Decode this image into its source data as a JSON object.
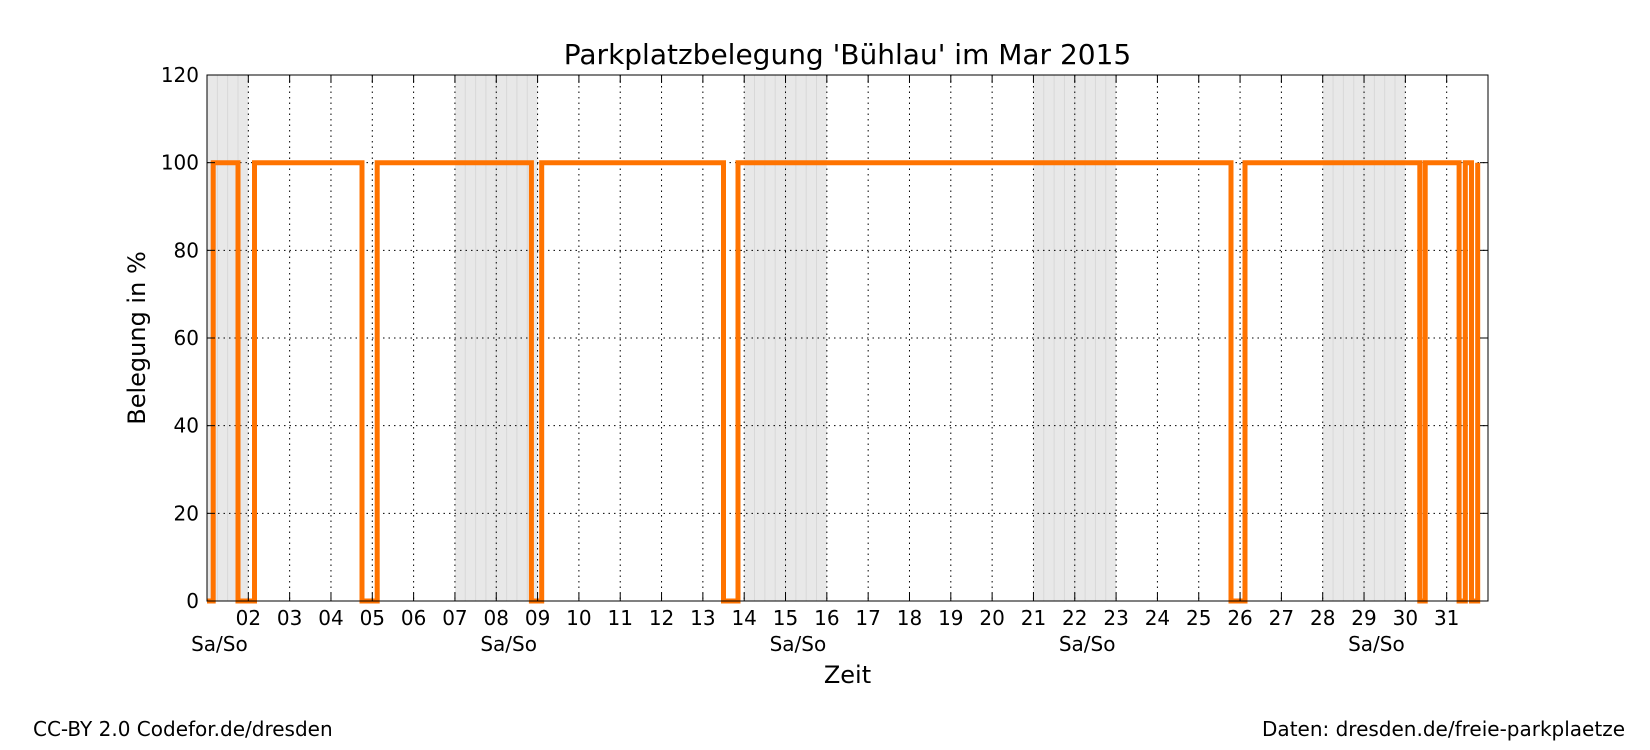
{
  "chart_data": {
    "type": "line",
    "title": "Parkplatzbelegung 'Bühlau' im Mar 2015",
    "xlabel": "Zeit",
    "ylabel": "Belegung in %",
    "ylim": [
      0,
      120
    ],
    "y_ticks": [
      0,
      20,
      40,
      60,
      80,
      100,
      120
    ],
    "xlim_days": [
      1.0,
      32.0
    ],
    "x_tick_labels": [
      "02",
      "03",
      "04",
      "05",
      "06",
      "07",
      "08",
      "09",
      "10",
      "11",
      "12",
      "13",
      "14",
      "15",
      "16",
      "17",
      "18",
      "19",
      "20",
      "21",
      "22",
      "23",
      "24",
      "25",
      "26",
      "27",
      "28",
      "29",
      "30",
      "31"
    ],
    "weekend_label": "Sa/So",
    "weekend_label_positions_day": [
      1.3,
      8.3,
      15.3,
      22.3,
      29.3
    ],
    "weekends": [
      [
        1.0,
        2.0
      ],
      [
        7.0,
        9.0
      ],
      [
        14.0,
        16.0
      ],
      [
        21.0,
        23.0
      ],
      [
        28.0,
        30.0
      ]
    ],
    "grid": true,
    "line_color": "#ff7300",
    "weekend_shade_color": "#e8e8e8",
    "series": [
      {
        "x": [
          1.0,
          1.15,
          1.15,
          1.75,
          1.75,
          2.15,
          2.15,
          4.75,
          4.75,
          5.12,
          5.12,
          8.85,
          8.85,
          9.1,
          9.1,
          13.5,
          13.5,
          13.85,
          13.85,
          25.78,
          25.78,
          26.12,
          26.12,
          30.35,
          30.35,
          30.48,
          30.48,
          31.3,
          31.3,
          31.45,
          31.45,
          31.6,
          31.6,
          31.75,
          31.75
        ],
        "y": [
          0,
          0,
          100,
          100,
          0,
          0,
          100,
          100,
          0,
          0,
          100,
          100,
          0,
          0,
          100,
          100,
          0,
          0,
          100,
          100,
          0,
          0,
          100,
          100,
          0,
          0,
          100,
          100,
          0,
          0,
          100,
          100,
          0,
          0,
          100
        ]
      }
    ]
  },
  "footer": {
    "left": "CC-BY 2.0 Codefor.de/dresden",
    "right": "Daten: dresden.de/freie-parkplaetze"
  }
}
